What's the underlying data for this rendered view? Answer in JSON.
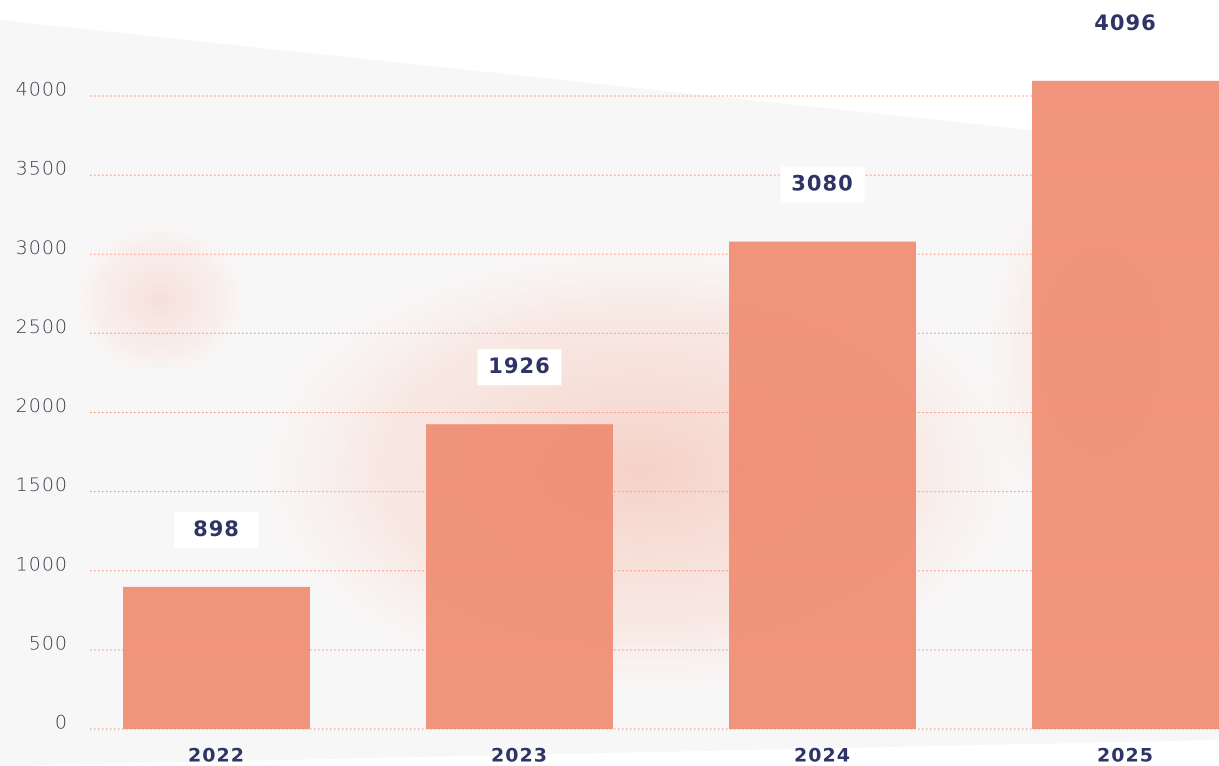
{
  "chart_data": {
    "type": "bar",
    "categories": [
      "2022",
      "2023",
      "2024",
      "2025"
    ],
    "values": [
      898,
      1926,
      3080,
      4096
    ],
    "color": "#ef8e75",
    "ylim": [
      0,
      4000
    ],
    "yticks": [
      0,
      500,
      1000,
      1500,
      2000,
      2500,
      3000,
      3500,
      4000
    ],
    "grid": true
  }
}
